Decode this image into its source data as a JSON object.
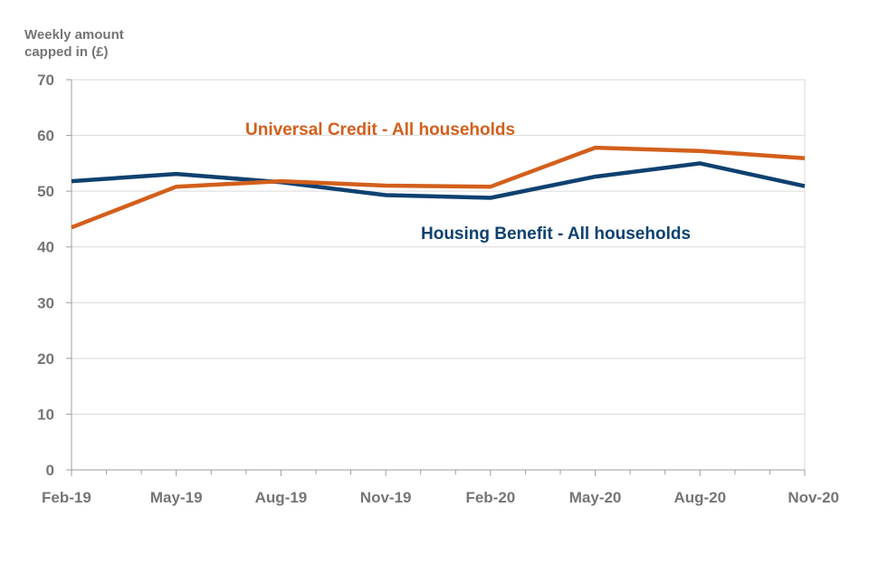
{
  "chart_data": {
    "type": "line",
    "title": "",
    "xlabel": "",
    "ylabel_lines": [
      "Weekly amount",
      "capped in (£)"
    ],
    "categories": [
      "Feb-19",
      "May-19",
      "Aug-19",
      "Nov-19",
      "Feb-20",
      "May-20",
      "Aug-20",
      "Nov-20"
    ],
    "ylim": [
      0,
      70
    ],
    "yticks": [
      "0",
      "10",
      "20",
      "30",
      "40",
      "50",
      "60",
      "70"
    ],
    "grid": true,
    "series": [
      {
        "name": "Universal Credit - All households",
        "color": "#D35F1B",
        "values": [
          43.5,
          50.8,
          51.8,
          51.0,
          50.8,
          57.8,
          57.2,
          55.9
        ]
      },
      {
        "name": "Housing Benefit - All households",
        "color": "#0E4170",
        "values": [
          51.8,
          53.1,
          51.6,
          49.3,
          48.8,
          52.6,
          55.0,
          50.9
        ]
      }
    ]
  }
}
